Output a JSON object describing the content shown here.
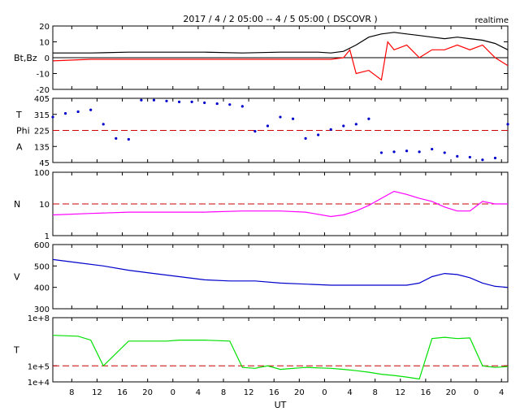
{
  "title": "2017 / 4 / 2   05:00 -- 4 / 5   05:00 ( DSCOVR )",
  "realtime_label": "realtime",
  "x_axis_label": "UT",
  "x_ticks": [
    "8",
    "12",
    "16",
    "20",
    "0",
    "4",
    "8",
    "12",
    "16",
    "20",
    "0",
    "4",
    "8",
    "12",
    "16",
    "20",
    "0",
    "4"
  ],
  "colors": {
    "bt": "#000000",
    "bz": "#ff0000",
    "phi": "#0000cc",
    "density": "#ff00ff",
    "speed": "#0000cc",
    "temperature": "#00e000",
    "reference_line": "#cc0000"
  },
  "chart_data": [
    {
      "type": "line",
      "panel": "magnetic_field",
      "ylabel": "Bt,Bz",
      "ylim": [
        -20,
        20
      ],
      "y_ticks": [
        "20",
        "10",
        "0",
        "-10",
        "-20"
      ],
      "x_range_hours": [
        0,
        72
      ],
      "zero_line": true,
      "series": [
        {
          "name": "Bt",
          "x": [
            0,
            6,
            12,
            18,
            24,
            30,
            36,
            42,
            44,
            46,
            48,
            50,
            52,
            54,
            56,
            58,
            60,
            62,
            64,
            66,
            68,
            70,
            72
          ],
          "y": [
            3,
            3,
            3.5,
            3.5,
            3.5,
            3,
            3.5,
            3.5,
            3,
            4,
            8,
            13,
            15,
            16,
            15,
            14,
            13,
            12,
            13,
            12,
            11,
            9,
            5
          ]
        },
        {
          "name": "Bz",
          "x": [
            0,
            6,
            12,
            18,
            24,
            30,
            36,
            42,
            44,
            46,
            47,
            48,
            50,
            52,
            53,
            54,
            56,
            58,
            60,
            62,
            64,
            66,
            68,
            70,
            72
          ],
          "y": [
            -2,
            -1,
            -1,
            -1,
            -1,
            -1,
            -1,
            -1,
            -1,
            0,
            5,
            -10,
            -8,
            -14,
            10,
            5,
            8,
            0,
            5,
            5,
            8,
            5,
            8,
            0,
            -5
          ]
        }
      ]
    },
    {
      "type": "scatter",
      "panel": "phi_angle",
      "ylabel": [
        "T",
        "Phi",
        "A"
      ],
      "ylim": [
        45,
        405
      ],
      "y_ticks": [
        "405",
        "315",
        "225",
        "135",
        "45"
      ],
      "reference_value": 225,
      "x_range_hours": [
        0,
        72
      ],
      "series": [
        {
          "name": "Phi",
          "x": [
            0,
            2,
            4,
            6,
            8,
            10,
            12,
            14,
            16,
            18,
            20,
            22,
            24,
            26,
            28,
            30,
            32,
            34,
            36,
            38,
            40,
            42,
            44,
            46,
            48,
            50,
            52,
            54,
            56,
            58,
            60,
            62,
            64,
            66,
            68,
            70,
            72
          ],
          "y": [
            300,
            320,
            330,
            340,
            260,
            180,
            175,
            395,
            395,
            390,
            385,
            385,
            380,
            375,
            370,
            360,
            220,
            250,
            300,
            290,
            180,
            200,
            230,
            250,
            260,
            290,
            100,
            105,
            110,
            105,
            120,
            100,
            80,
            75,
            60,
            70,
            260
          ]
        }
      ]
    },
    {
      "type": "line",
      "panel": "density",
      "ylabel": "N",
      "y_scale": "log",
      "ylim": [
        1,
        100
      ],
      "y_ticks": [
        "100",
        "10",
        "1"
      ],
      "reference_value": 10,
      "x_range_hours": [
        0,
        72
      ],
      "series": [
        {
          "name": "N",
          "x": [
            0,
            6,
            12,
            18,
            24,
            30,
            36,
            40,
            44,
            46,
            48,
            50,
            52,
            54,
            56,
            58,
            60,
            62,
            64,
            66,
            68,
            70,
            72
          ],
          "y": [
            4.5,
            5,
            5.5,
            5.5,
            5.5,
            6,
            6,
            5.5,
            4,
            4.5,
            6,
            9,
            15,
            25,
            20,
            15,
            12,
            8,
            6,
            6,
            12,
            10,
            10
          ]
        }
      ]
    },
    {
      "type": "line",
      "panel": "speed",
      "ylabel": "V",
      "ylim": [
        300,
        600
      ],
      "y_ticks": [
        "600",
        "500",
        "400",
        "300"
      ],
      "x_range_hours": [
        0,
        72
      ],
      "series": [
        {
          "name": "V",
          "x": [
            0,
            4,
            8,
            12,
            16,
            20,
            24,
            28,
            32,
            36,
            40,
            44,
            48,
            52,
            56,
            58,
            60,
            62,
            64,
            66,
            68,
            70,
            72
          ],
          "y": [
            530,
            515,
            500,
            480,
            465,
            450,
            435,
            430,
            430,
            420,
            415,
            410,
            410,
            410,
            410,
            420,
            450,
            465,
            460,
            445,
            420,
            405,
            400
          ]
        }
      ]
    },
    {
      "type": "line",
      "panel": "temperature",
      "ylabel": "T",
      "y_scale": "log",
      "ylim": [
        10000,
        100000000
      ],
      "y_ticks": [
        "1e+8",
        "1e+5",
        "1e+4"
      ],
      "reference_value": 100000,
      "x_range_hours": [
        0,
        72
      ],
      "series": [
        {
          "name": "T",
          "x": [
            0,
            4,
            6,
            8,
            12,
            16,
            18,
            20,
            24,
            28,
            30,
            32,
            34,
            36,
            40,
            44,
            46,
            48,
            50,
            52,
            54,
            56,
            58,
            60,
            62,
            64,
            66,
            68,
            70,
            72
          ],
          "y": [
            8000000,
            7000000,
            4000000,
            100000,
            3500000,
            3500000,
            3500000,
            4000000,
            4000000,
            3500000,
            80000,
            70000,
            100000,
            60000,
            80000,
            70000,
            60000,
            50000,
            40000,
            30000,
            25000,
            20000,
            15000,
            5000000,
            6000000,
            5000000,
            5500000,
            100000,
            80000,
            90000
          ]
        }
      ]
    }
  ]
}
